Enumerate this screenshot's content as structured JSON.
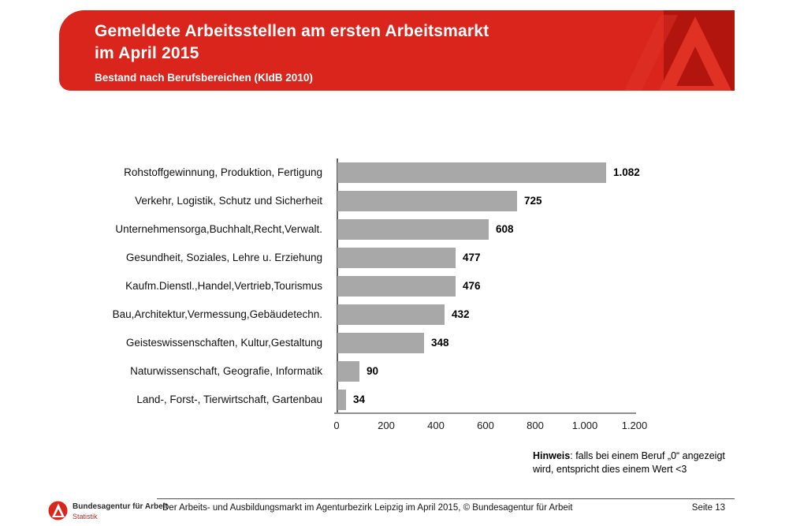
{
  "header": {
    "title_line1": "Gemeldete Arbeitsstellen am ersten Arbeitsmarkt",
    "title_line2": "im April 2015",
    "subtitle": "Bestand nach Berufsbereichen (KldB 2010)",
    "banner_color": "#d9251c",
    "logo_square_color": "#b1150e",
    "logo_a_color": "#e03224"
  },
  "chart_data": {
    "type": "bar",
    "orientation": "horizontal",
    "title": "Gemeldete Arbeitsstellen am ersten Arbeitsmarkt im April 2015",
    "subtitle": "Bestand nach Berufsbereichen (KldB 2010)",
    "categories": [
      "Rohstoffgewinnung, Produktion, Fertigung",
      "Verkehr, Logistik, Schutz und Sicherheit",
      "Unternehmensorga,Buchhalt,Recht,Verwalt.",
      "Gesundheit, Soziales, Lehre u. Erziehung",
      "Kaufm.Dienstl.,Handel,Vertrieb,Tourismus",
      "Bau,Architektur,Vermessung,Gebäudetechn.",
      "Geisteswissenschaften, Kultur,Gestaltung",
      "Naturwissenschaft, Geografie, Informatik",
      "Land-, Forst-, Tierwirtschaft, Gartenbau"
    ],
    "values": [
      1082,
      725,
      608,
      477,
      476,
      432,
      348,
      90,
      34
    ],
    "value_labels": [
      "1.082",
      "725",
      "608",
      "477",
      "476",
      "432",
      "348",
      "90",
      "34"
    ],
    "xlabel": "",
    "ylabel": "",
    "xlim": [
      0,
      1200
    ],
    "xticks": [
      0,
      200,
      400,
      600,
      800,
      1000,
      1200
    ],
    "xtick_labels": [
      "0",
      "200",
      "400",
      "600",
      "800",
      "1.000",
      "1.200"
    ],
    "bar_color": "#a8a8a8",
    "grid": false,
    "legend": null
  },
  "note": {
    "label": "Hinweis",
    "text": ": falls bei einem Beruf „0“ angezeigt wird, entspricht dies einem Wert <3"
  },
  "footer": {
    "brand_name": "Bundesagentur für Arbeit",
    "brand_sub": "Statistik",
    "source_text": "Der Arbeits- und Ausbildungsmarkt im Agenturbezirk Leipzig im April 2015, © Bundesagentur für Arbeit",
    "page_label": "Seite 13"
  }
}
